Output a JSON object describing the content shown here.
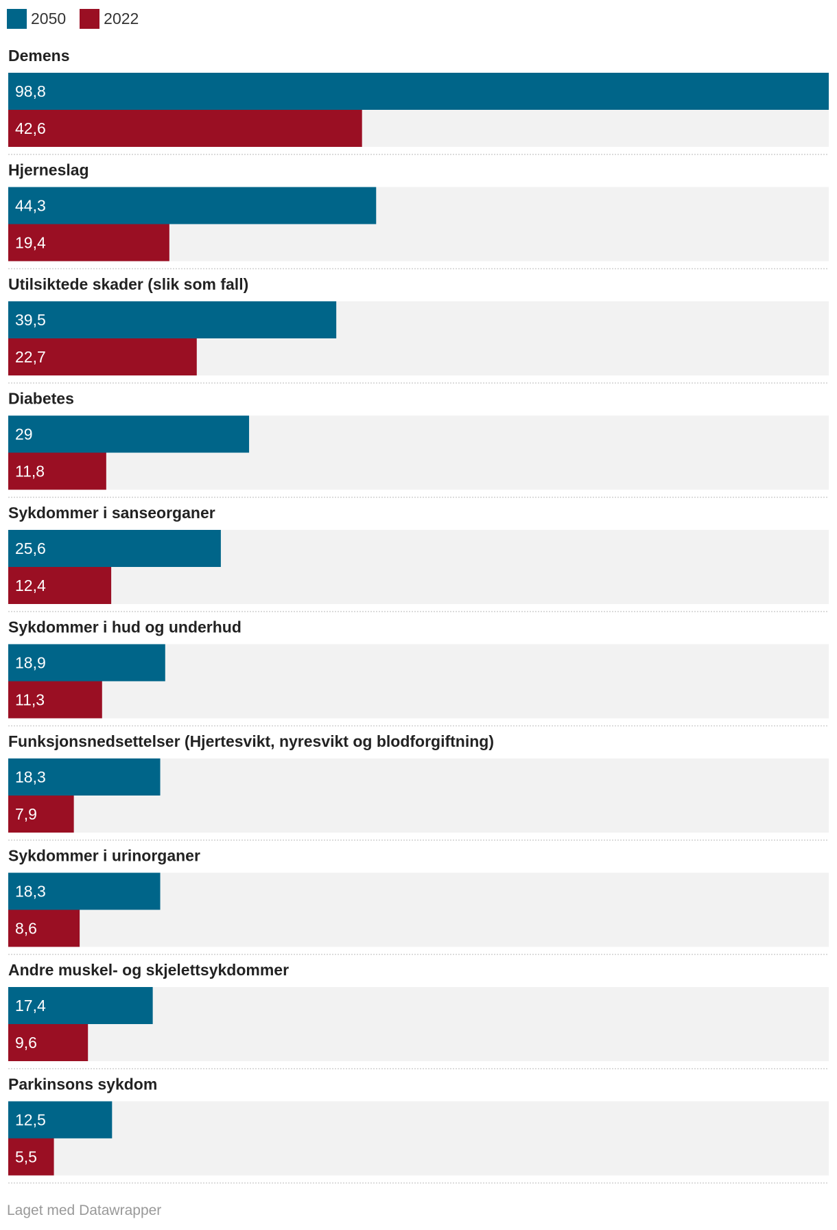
{
  "legend": [
    {
      "label": "2050",
      "color": "#006589"
    },
    {
      "label": "2022",
      "color": "#9a0f23"
    }
  ],
  "colors": {
    "track": "#f2f2f2",
    "separator": "#cfcfcf"
  },
  "chart_data": {
    "type": "bar",
    "orientation": "horizontal",
    "grouped": true,
    "grid": false,
    "legend_position": "top-left",
    "xlim": [
      0,
      98.8
    ],
    "categories": [
      "Demens",
      "Hjerneslag",
      "Utilsiktede skader (slik som fall)",
      "Diabetes",
      "Sykdommer i sanseorganer",
      "Sykdommer i hud og underhud",
      "Funksjonsnedsettelser (Hjertesvikt, nyresvikt og blodforgiftning)",
      "Sykdommer i urinorganer",
      "Andre muskel- og skjelettsykdommer",
      "Parkinsons sykdom"
    ],
    "series": [
      {
        "name": "2050",
        "color": "#006589",
        "values": [
          98.8,
          44.3,
          39.5,
          29,
          25.6,
          18.9,
          18.3,
          18.3,
          17.4,
          12.5
        ],
        "labels": [
          "98,8",
          "44,3",
          "39,5",
          "29",
          "25,6",
          "18,9",
          "18,3",
          "18,3",
          "17,4",
          "12,5"
        ]
      },
      {
        "name": "2022",
        "color": "#9a0f23",
        "values": [
          42.6,
          19.4,
          22.7,
          11.8,
          12.4,
          11.3,
          7.9,
          8.6,
          9.6,
          5.5
        ],
        "labels": [
          "42,6",
          "19,4",
          "22,7",
          "11,8",
          "12,4",
          "11,3",
          "7,9",
          "8,6",
          "9,6",
          "5,5"
        ]
      }
    ]
  },
  "footer": {
    "credit": "Laget med Datawrapper"
  }
}
